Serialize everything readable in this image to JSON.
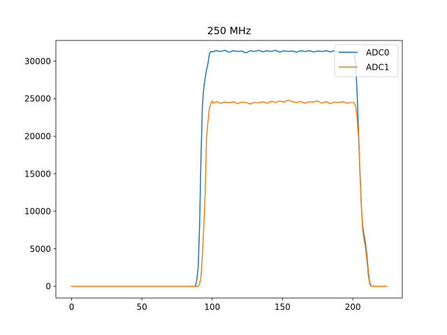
{
  "chart_data": {
    "type": "line",
    "title": "250 MHz",
    "xlabel": "",
    "ylabel": "",
    "xlim": [
      -11.2,
      235.2
    ],
    "ylim": [
      -1560,
      32760
    ],
    "xticks": [
      0,
      50,
      100,
      150,
      200
    ],
    "yticks": [
      0,
      5000,
      10000,
      15000,
      20000,
      25000,
      30000
    ],
    "grid": false,
    "legend_position": "top-right",
    "series": [
      {
        "name": "ADC0",
        "color": "#1f77b4",
        "points": [
          [
            0,
            0
          ],
          [
            20,
            0
          ],
          [
            40,
            0
          ],
          [
            60,
            0
          ],
          [
            80,
            0
          ],
          [
            88,
            0
          ],
          [
            89,
            800
          ],
          [
            90,
            2500
          ],
          [
            91,
            8000
          ],
          [
            92,
            17000
          ],
          [
            93,
            24000
          ],
          [
            94,
            26500
          ],
          [
            95,
            27800
          ],
          [
            96,
            28900
          ],
          [
            97,
            29700
          ],
          [
            98,
            31000
          ],
          [
            99,
            31300
          ],
          [
            100,
            31250
          ],
          [
            103,
            31400
          ],
          [
            106,
            31300
          ],
          [
            109,
            31450
          ],
          [
            112,
            31200
          ],
          [
            115,
            31400
          ],
          [
            118,
            31300
          ],
          [
            121,
            31350
          ],
          [
            124,
            31100
          ],
          [
            127,
            31400
          ],
          [
            130,
            31300
          ],
          [
            133,
            31450
          ],
          [
            136,
            31250
          ],
          [
            139,
            31400
          ],
          [
            142,
            31300
          ],
          [
            145,
            31450
          ],
          [
            148,
            31200
          ],
          [
            151,
            31400
          ],
          [
            154,
            31300
          ],
          [
            157,
            31350
          ],
          [
            160,
            31200
          ],
          [
            163,
            31400
          ],
          [
            166,
            31300
          ],
          [
            169,
            31400
          ],
          [
            172,
            31250
          ],
          [
            175,
            31350
          ],
          [
            178,
            31300
          ],
          [
            181,
            31400
          ],
          [
            184,
            31250
          ],
          [
            187,
            31400
          ],
          [
            190,
            31300
          ],
          [
            193,
            31350
          ],
          [
            196,
            31250
          ],
          [
            199,
            31300
          ],
          [
            201,
            31200
          ],
          [
            202,
            29500
          ],
          [
            203,
            26000
          ],
          [
            204,
            21000
          ],
          [
            205,
            15500
          ],
          [
            206,
            11000
          ],
          [
            207,
            8000
          ],
          [
            208,
            6800
          ],
          [
            209,
            5800
          ],
          [
            210,
            4200
          ],
          [
            211,
            2000
          ],
          [
            212,
            500
          ],
          [
            213,
            100
          ],
          [
            214,
            0
          ],
          [
            224,
            0
          ]
        ]
      },
      {
        "name": "ADC1",
        "color": "#ff7f0e",
        "points": [
          [
            0,
            0
          ],
          [
            20,
            0
          ],
          [
            40,
            0
          ],
          [
            60,
            0
          ],
          [
            80,
            0
          ],
          [
            90,
            0
          ],
          [
            91,
            300
          ],
          [
            92,
            1200
          ],
          [
            93,
            4000
          ],
          [
            94,
            8000
          ],
          [
            95,
            12500
          ],
          [
            96,
            20000
          ],
          [
            97,
            22000
          ],
          [
            98,
            23800
          ],
          [
            99,
            24300
          ],
          [
            100,
            24700
          ],
          [
            101,
            24400
          ],
          [
            103,
            24600
          ],
          [
            106,
            24400
          ],
          [
            109,
            24550
          ],
          [
            112,
            24450
          ],
          [
            115,
            24600
          ],
          [
            118,
            24350
          ],
          [
            121,
            24550
          ],
          [
            124,
            24500
          ],
          [
            127,
            24300
          ],
          [
            130,
            24500
          ],
          [
            133,
            24450
          ],
          [
            136,
            24600
          ],
          [
            139,
            24400
          ],
          [
            142,
            24650
          ],
          [
            145,
            24500
          ],
          [
            148,
            24700
          ],
          [
            151,
            24550
          ],
          [
            154,
            24800
          ],
          [
            157,
            24600
          ],
          [
            160,
            24500
          ],
          [
            163,
            24650
          ],
          [
            166,
            24400
          ],
          [
            169,
            24600
          ],
          [
            172,
            24550
          ],
          [
            175,
            24700
          ],
          [
            178,
            24400
          ],
          [
            181,
            24600
          ],
          [
            184,
            24350
          ],
          [
            187,
            24550
          ],
          [
            190,
            24500
          ],
          [
            193,
            24600
          ],
          [
            196,
            24400
          ],
          [
            199,
            24500
          ],
          [
            201,
            24450
          ],
          [
            202,
            24000
          ],
          [
            203,
            22500
          ],
          [
            204,
            20000
          ],
          [
            205,
            16000
          ],
          [
            206,
            11000
          ],
          [
            207,
            7500
          ],
          [
            208,
            6200
          ],
          [
            209,
            5200
          ],
          [
            210,
            3500
          ],
          [
            211,
            1500
          ],
          [
            212,
            300
          ],
          [
            213,
            50
          ],
          [
            214,
            0
          ],
          [
            224,
            0
          ]
        ]
      }
    ]
  }
}
